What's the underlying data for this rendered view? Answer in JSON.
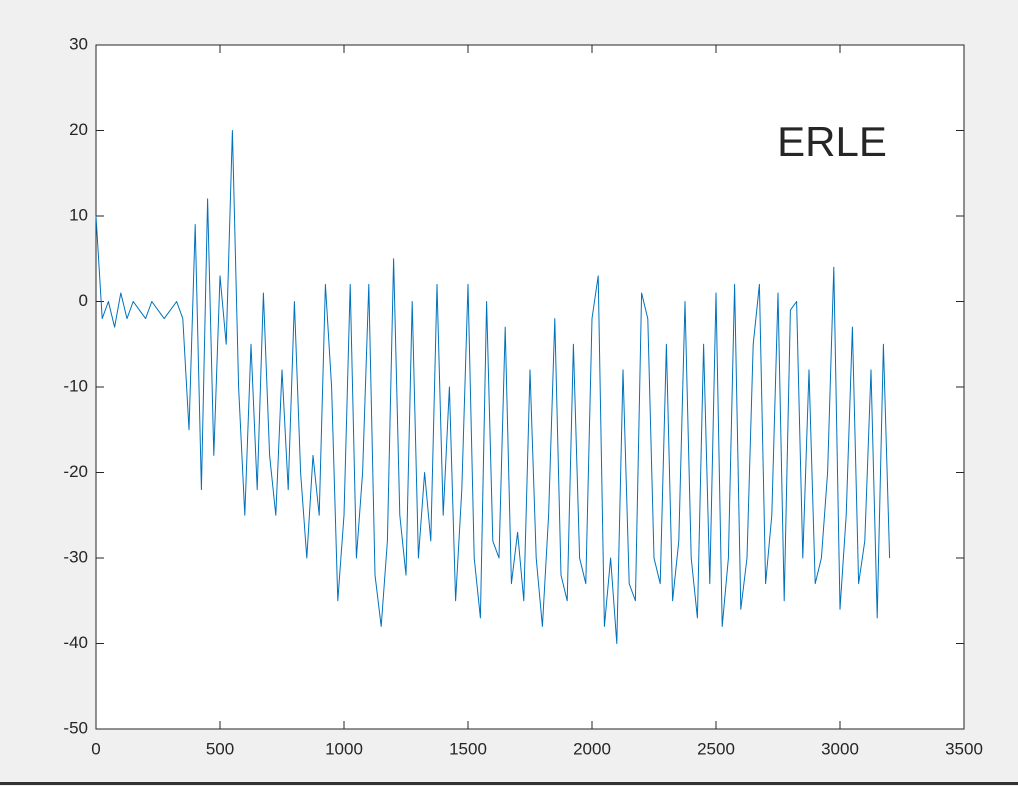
{
  "chart_data": {
    "type": "line",
    "annotation": "ERLE",
    "annotation_color": "#d95319",
    "x": [
      0,
      25,
      50,
      75,
      100,
      125,
      150,
      175,
      200,
      225,
      250,
      275,
      300,
      325,
      350,
      375,
      400,
      425,
      450,
      475,
      500,
      525,
      550,
      575,
      600,
      625,
      650,
      675,
      700,
      725,
      750,
      775,
      800,
      825,
      850,
      875,
      900,
      925,
      950,
      975,
      1000,
      1025,
      1050,
      1075,
      1100,
      1125,
      1150,
      1175,
      1200,
      1225,
      1250,
      1275,
      1300,
      1325,
      1350,
      1375,
      1400,
      1425,
      1450,
      1475,
      1500,
      1525,
      1550,
      1575,
      1600,
      1625,
      1650,
      1675,
      1700,
      1725,
      1750,
      1775,
      1800,
      1825,
      1850,
      1875,
      1900,
      1925,
      1950,
      1975,
      2000,
      2025,
      2050,
      2075,
      2100,
      2125,
      2150,
      2175,
      2200,
      2225,
      2250,
      2275,
      2300,
      2325,
      2350,
      2375,
      2400,
      2425,
      2450,
      2475,
      2500,
      2525,
      2550,
      2575,
      2600,
      2625,
      2650,
      2675,
      2700,
      2725,
      2750,
      2775,
      2800,
      2825,
      2850,
      2875,
      2900,
      2925,
      2950,
      2975,
      3000,
      3025,
      3050,
      3075,
      3100,
      3125,
      3150,
      3175,
      3200
    ],
    "series": [
      {
        "color": "#0072bd",
        "values": [
          10,
          -2,
          0,
          -3,
          1,
          -2,
          0,
          -1,
          -2,
          0,
          -1,
          -2,
          -1,
          0,
          -2,
          -15,
          9,
          -22,
          12,
          -18,
          3,
          -5,
          20,
          -10,
          -25,
          -5,
          -22,
          1,
          -18,
          -25,
          -8,
          -22,
          0,
          -20,
          -30,
          -18,
          -25,
          2,
          -10,
          -35,
          -25,
          2,
          -30,
          -20,
          2,
          -32,
          -38,
          -28,
          5,
          -25,
          -32,
          0,
          -30,
          -20,
          -28,
          2,
          -25,
          -10,
          -35,
          -22,
          2,
          -30,
          -37,
          0,
          -28,
          -30,
          -3,
          -33,
          -27,
          -35,
          -8,
          -30,
          -38,
          -25,
          -2,
          -32,
          -35,
          -5,
          -30,
          -33,
          -2,
          3,
          -38,
          -30,
          -40,
          -8,
          -33,
          -35,
          1,
          -2,
          -30,
          -33,
          -5,
          -35,
          -28,
          0,
          -30,
          -37,
          -5,
          -33,
          1,
          -38,
          -30,
          2,
          -36,
          -30,
          -5,
          2,
          -33,
          -25,
          1,
          -35,
          -1,
          0,
          -30,
          -8,
          -33,
          -30,
          -20,
          4,
          -36,
          -25,
          -3,
          -33,
          -28,
          -8,
          -37,
          -5,
          -30
        ]
      }
    ],
    "xlim": [
      0,
      3500
    ],
    "xticks": [
      0,
      500,
      1000,
      1500,
      2000,
      2500,
      3000,
      3500
    ],
    "ylim": [
      -50,
      30
    ],
    "yticks": [
      -50,
      -40,
      -30,
      -20,
      -10,
      0,
      10,
      20,
      30
    ]
  }
}
